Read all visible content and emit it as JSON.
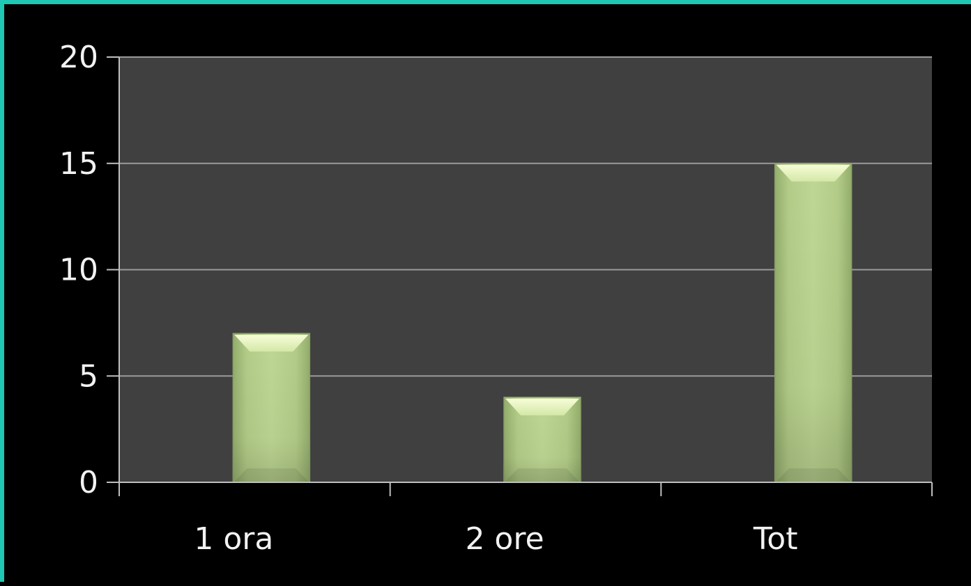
{
  "chart_data": {
    "type": "bar",
    "title": "",
    "xlabel": "",
    "ylabel": "",
    "categories": [
      "1 ora",
      "2 ore",
      "Tot"
    ],
    "values": [
      7,
      4,
      15
    ],
    "ylim": [
      0,
      20
    ],
    "yticks": [
      "0",
      "5",
      "10",
      "15",
      "20"
    ],
    "grid": true,
    "legend": "none",
    "colors": {
      "plot_background": "#404040",
      "page_background": "#000000",
      "frame_accent": "#1fc7b5",
      "bar_fill": "#b5cf8a",
      "bar_highlight": "#eef8c4",
      "gridline": "#9a9a9a",
      "axis": "#bfbfbf",
      "tick_text": "#f2f2f2"
    }
  }
}
